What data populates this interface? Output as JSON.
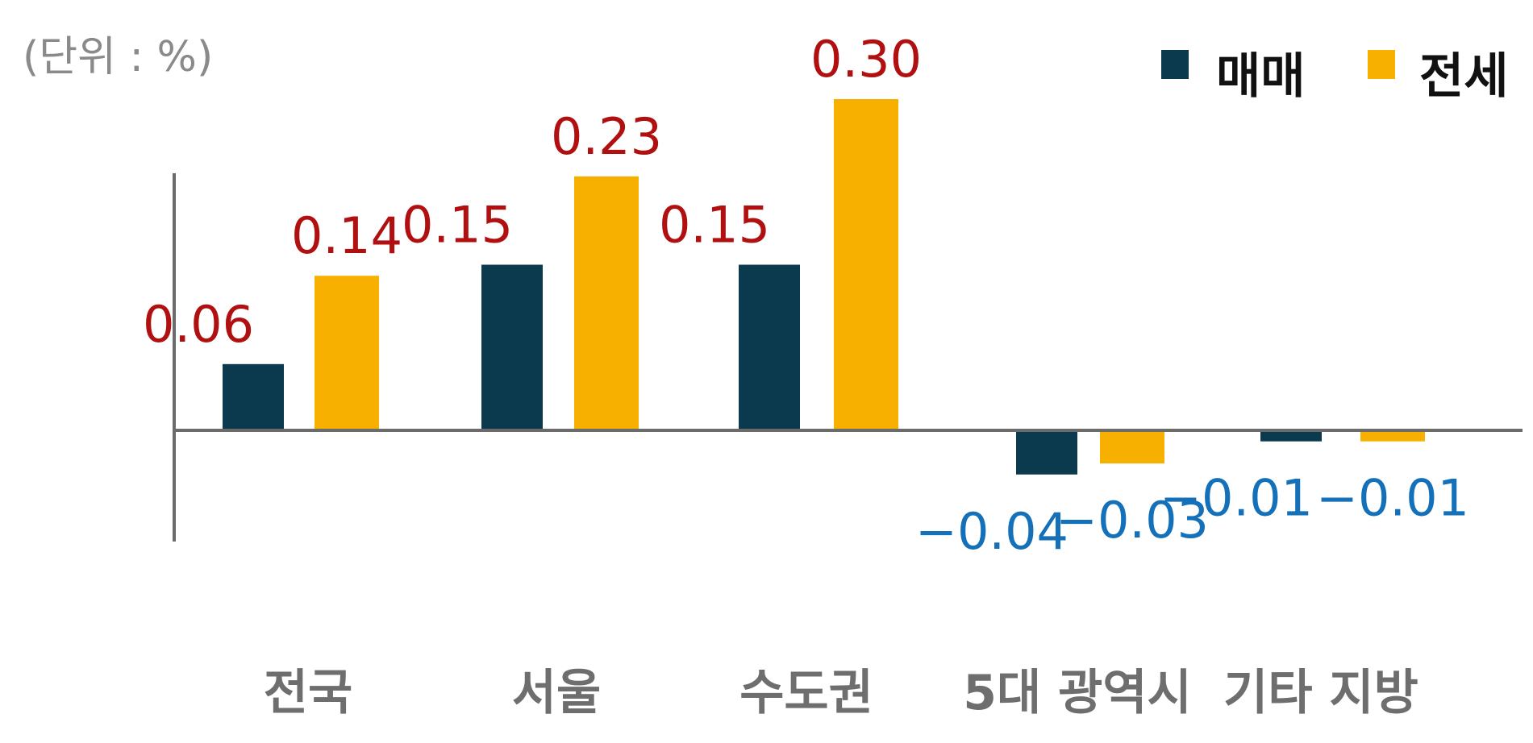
{
  "unit_label": "(단위 : %)",
  "colors": {
    "sale": "#0b3a4e",
    "jeonse": "#f7b000",
    "positive_label": "#b01010",
    "negative_label": "#1470b8",
    "axis": "#6b6b6b"
  },
  "chart_data": {
    "type": "bar",
    "categories": [
      "전국",
      "서울",
      "수도권",
      "5대 광역시",
      "기타 지방"
    ],
    "series": [
      {
        "name": "매매",
        "values": [
          0.06,
          0.15,
          0.15,
          -0.04,
          -0.01
        ]
      },
      {
        "name": "전세",
        "values": [
          0.14,
          0.23,
          0.3,
          -0.03,
          -0.01
        ]
      }
    ],
    "value_labels": [
      [
        "0.06",
        "0.15",
        "0.15",
        "−0.04",
        "−0.01"
      ],
      [
        "0.14",
        "0.23",
        "0.30",
        "−0.03",
        "−0.01"
      ]
    ],
    "legend_position": "top-right",
    "grid": false
  }
}
